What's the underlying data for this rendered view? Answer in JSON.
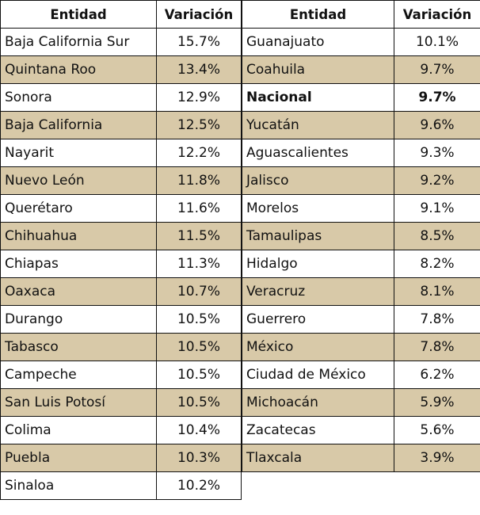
{
  "headers": {
    "entity": "Entidad",
    "variation": "Variación"
  },
  "left_rows": [
    {
      "entidad": "Baja California Sur",
      "variacion": "15.7%"
    },
    {
      "entidad": "Quintana Roo",
      "variacion": "13.4%"
    },
    {
      "entidad": "Sonora",
      "variacion": "12.9%"
    },
    {
      "entidad": "Baja California",
      "variacion": "12.5%"
    },
    {
      "entidad": "Nayarit",
      "variacion": "12.2%"
    },
    {
      "entidad": "Nuevo León",
      "variacion": "11.8%"
    },
    {
      "entidad": "Querétaro",
      "variacion": "11.6%"
    },
    {
      "entidad": "Chihuahua",
      "variacion": "11.5%"
    },
    {
      "entidad": "Chiapas",
      "variacion": "11.3%"
    },
    {
      "entidad": "Oaxaca",
      "variacion": "10.7%"
    },
    {
      "entidad": "Durango",
      "variacion": "10.5%"
    },
    {
      "entidad": "Tabasco",
      "variacion": "10.5%"
    },
    {
      "entidad": "Campeche",
      "variacion": "10.5%"
    },
    {
      "entidad": "San Luis Potosí",
      "variacion": "10.5%"
    },
    {
      "entidad": "Colima",
      "variacion": "10.4%"
    },
    {
      "entidad": "Puebla",
      "variacion": "10.3%"
    },
    {
      "entidad": "Sinaloa",
      "variacion": "10.2%"
    }
  ],
  "right_rows": [
    {
      "entidad": "Guanajuato",
      "variacion": "10.1%"
    },
    {
      "entidad": "Coahuila",
      "variacion": "9.7%"
    },
    {
      "entidad": "Nacional",
      "variacion": "9.7%"
    },
    {
      "entidad": "Yucatán",
      "variacion": "9.6%"
    },
    {
      "entidad": "Aguascalientes",
      "variacion": "9.3%"
    },
    {
      "entidad": "Jalisco",
      "variacion": "9.2%"
    },
    {
      "entidad": "Morelos",
      "variacion": "9.1%"
    },
    {
      "entidad": "Tamaulipas",
      "variacion": "8.5%"
    },
    {
      "entidad": "Hidalgo",
      "variacion": "8.2%"
    },
    {
      "entidad": "Veracruz",
      "variacion": "8.1%"
    },
    {
      "entidad": "Guerrero",
      "variacion": "7.8%"
    },
    {
      "entidad": "México",
      "variacion": "7.8%"
    },
    {
      "entidad": "Ciudad de México",
      "variacion": "6.2%"
    },
    {
      "entidad": "Michoacán",
      "variacion": "5.9%"
    },
    {
      "entidad": "Zacatecas",
      "variacion": "5.6%"
    },
    {
      "entidad": "Tlaxcala",
      "variacion": "3.9%"
    }
  ],
  "colors": {
    "shade": "#d8c9a8",
    "plain": "#ffffff",
    "border": "#111111"
  }
}
